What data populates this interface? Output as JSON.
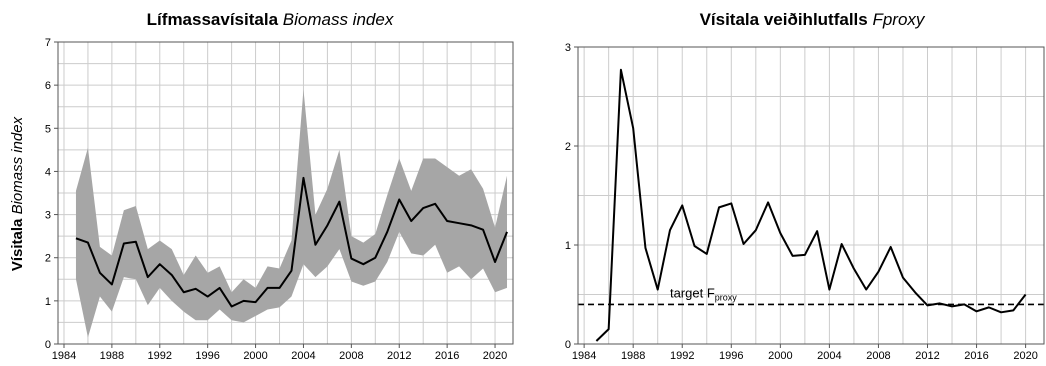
{
  "chart_data": [
    {
      "type": "line",
      "title": "Lífmassavísitala",
      "title_italic": "Biomass index",
      "ylabel": "Vísitala",
      "ylabel_italic": "Biomass index",
      "xlim": [
        1983.5,
        2021.5
      ],
      "ylim": [
        0,
        7
      ],
      "xticks": [
        1984,
        1988,
        1992,
        1996,
        2000,
        2004,
        2008,
        2012,
        2016,
        2020
      ],
      "yticks": [
        0,
        1,
        2,
        3,
        4,
        5,
        6,
        7
      ],
      "grid": true,
      "band_color": "#a6a6a6",
      "line_color": "#000000",
      "x": [
        1985,
        1986,
        1987,
        1988,
        1989,
        1990,
        1991,
        1992,
        1993,
        1994,
        1995,
        1996,
        1997,
        1998,
        1999,
        2000,
        2001,
        2002,
        2003,
        2004,
        2005,
        2006,
        2007,
        2008,
        2009,
        2010,
        2011,
        2012,
        2013,
        2014,
        2015,
        2016,
        2017,
        2018,
        2019,
        2020,
        2021
      ],
      "y": [
        2.45,
        2.35,
        1.65,
        1.38,
        2.33,
        2.37,
        1.55,
        1.85,
        1.6,
        1.2,
        1.28,
        1.1,
        1.3,
        0.87,
        1.0,
        0.97,
        1.3,
        1.3,
        1.7,
        3.85,
        2.3,
        2.75,
        3.3,
        1.98,
        1.85,
        2.0,
        2.6,
        3.35,
        2.85,
        3.15,
        3.25,
        2.85,
        2.8,
        2.75,
        2.65,
        1.9,
        2.6
      ],
      "lower": [
        1.5,
        0.15,
        1.1,
        0.75,
        1.55,
        1.5,
        0.9,
        1.3,
        1.0,
        0.75,
        0.55,
        0.55,
        0.8,
        0.55,
        0.5,
        0.65,
        0.8,
        0.85,
        1.1,
        1.85,
        1.55,
        1.8,
        2.2,
        1.45,
        1.35,
        1.45,
        1.9,
        2.6,
        2.1,
        2.05,
        2.3,
        1.65,
        1.8,
        1.5,
        1.75,
        1.2,
        1.3
      ],
      "upper": [
        3.55,
        4.55,
        2.25,
        2.05,
        3.1,
        3.2,
        2.2,
        2.4,
        2.2,
        1.6,
        2.05,
        1.65,
        1.8,
        1.2,
        1.5,
        1.3,
        1.8,
        1.75,
        2.4,
        5.9,
        3.0,
        3.6,
        4.5,
        2.5,
        2.35,
        2.55,
        3.45,
        4.3,
        3.55,
        4.3,
        4.3,
        4.1,
        3.9,
        4.05,
        3.6,
        2.7,
        3.9
      ]
    },
    {
      "type": "line",
      "title": "Vísitala veiðihlutfalls",
      "title_italic": "Fproxy",
      "xlim": [
        1983.5,
        2021.5
      ],
      "ylim": [
        0,
        3
      ],
      "xticks": [
        1984,
        1988,
        1992,
        1996,
        2000,
        2004,
        2008,
        2012,
        2016,
        2020
      ],
      "yticks": [
        0,
        1,
        2,
        3
      ],
      "grid": true,
      "line_color": "#000000",
      "x": [
        1985,
        1986,
        1987,
        1988,
        1989,
        1990,
        1991,
        1992,
        1993,
        1994,
        1995,
        1996,
        1997,
        1998,
        1999,
        2000,
        2001,
        2002,
        2003,
        2004,
        2005,
        2006,
        2007,
        2008,
        2009,
        2010,
        2011,
        2012,
        2013,
        2014,
        2015,
        2016,
        2017,
        2018,
        2019,
        2020
      ],
      "y": [
        0.03,
        0.15,
        2.77,
        2.18,
        0.97,
        0.55,
        1.15,
        1.4,
        0.99,
        0.91,
        1.38,
        1.42,
        1.01,
        1.15,
        1.43,
        1.12,
        0.89,
        0.9,
        1.14,
        0.55,
        1.01,
        0.76,
        0.55,
        0.73,
        0.98,
        0.67,
        0.52,
        0.39,
        0.41,
        0.38,
        0.4,
        0.33,
        0.37,
        0.32,
        0.34,
        0.5
      ],
      "reference_line": {
        "y": 0.4,
        "style": "dashed",
        "label": "target F",
        "label_sub": "proxy"
      }
    }
  ]
}
